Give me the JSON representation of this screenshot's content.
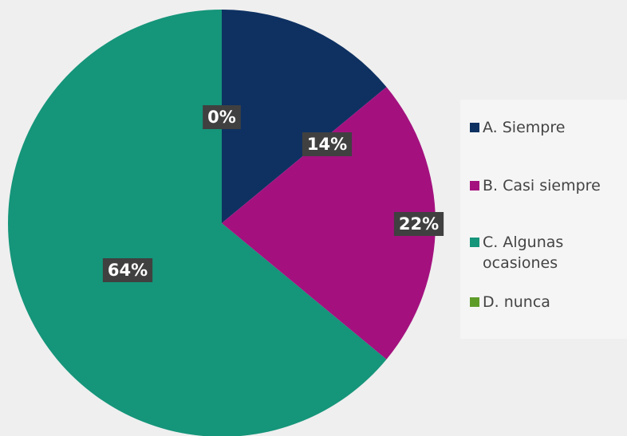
{
  "chart_data": {
    "type": "pie",
    "categories": [
      "A. Siempre",
      "B. Casi siempre",
      "C. Algunas ocasiones",
      "D. nunca"
    ],
    "values": [
      14,
      22,
      64,
      0
    ],
    "value_labels": [
      "14%",
      "22%",
      "64%",
      "0%"
    ],
    "colors": [
      "#0e3162",
      "#a4117f",
      "#15957a",
      "#5e9c2a"
    ],
    "legend": "right"
  }
}
